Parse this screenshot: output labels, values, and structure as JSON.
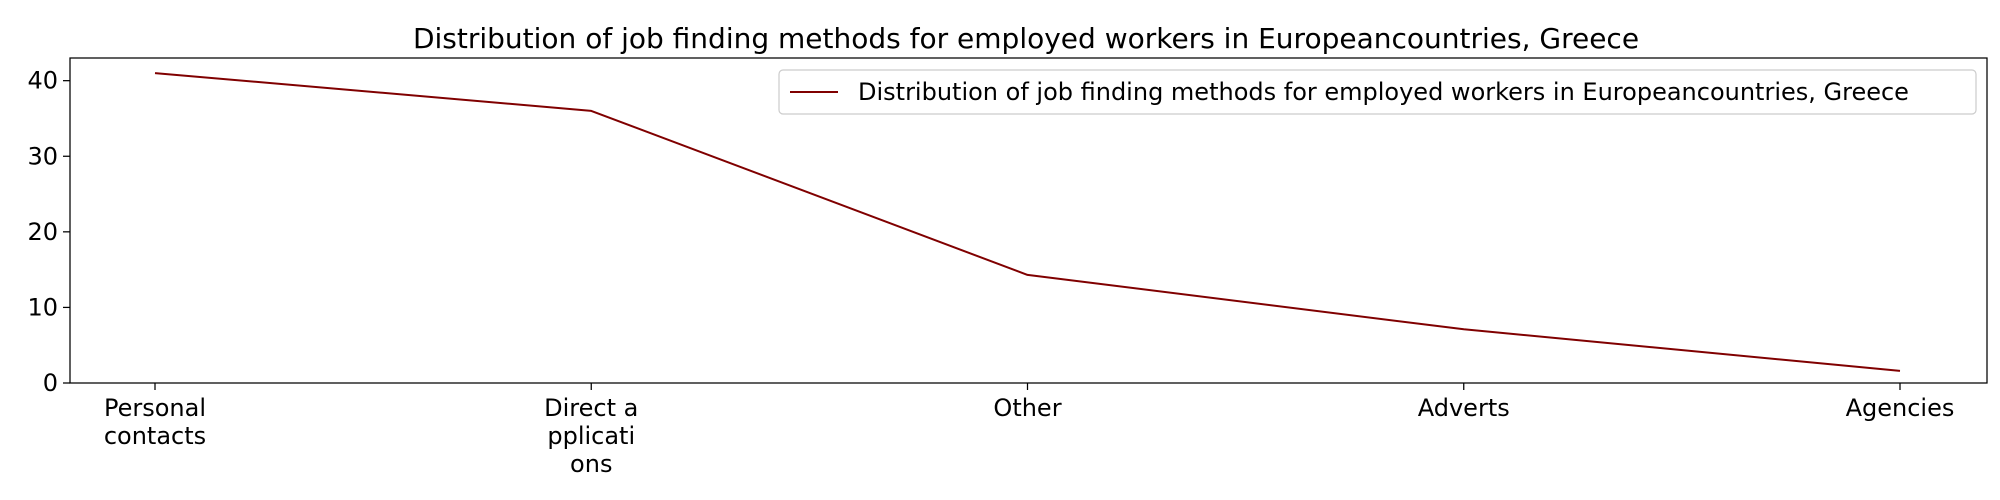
{
  "chart_data": {
    "type": "line",
    "title": "Distribution of job finding methods for employed workers in Europeancountries, Greece",
    "xlabel": "",
    "ylabel": "",
    "categories": [
      [
        "Personal",
        "contacts"
      ],
      [
        "Direct a",
        "pplicati",
        "ons"
      ],
      [
        "Other"
      ],
      [
        "Adverts"
      ],
      [
        "Agencies"
      ]
    ],
    "series": [
      {
        "name": "Distribution of job finding methods for employed workers in Europeancountries, Greece",
        "values": [
          41.0,
          36.0,
          14.3,
          7.1,
          1.6
        ],
        "color": "#800000"
      }
    ],
    "ylim": [
      0,
      43
    ],
    "yticks": [
      0,
      10,
      20,
      30,
      40
    ],
    "grid": false,
    "legend": "top-right"
  }
}
